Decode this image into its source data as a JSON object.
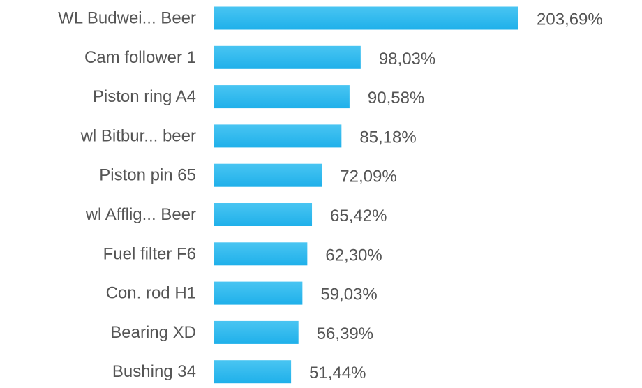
{
  "chart_data": {
    "type": "bar",
    "orientation": "horizontal",
    "categories": [
      "WL Budwei... Beer",
      "Cam follower 1",
      "Piston ring A4",
      "wl Bitbur... beer",
      "Piston pin 65",
      "wl Afflig... Beer",
      "Fuel filter F6",
      "Con. rod H1",
      "Bearing XD",
      "Bushing 34"
    ],
    "values": [
      203.69,
      98.03,
      90.58,
      85.18,
      72.09,
      65.42,
      62.3,
      59.03,
      56.39,
      51.44
    ],
    "value_labels": [
      "203,69%",
      "98,03%",
      "90,58%",
      "85,18%",
      "72,09%",
      "65,42%",
      "62,30%",
      "59,03%",
      "56,39%",
      "51,44%"
    ],
    "title": "",
    "xlabel": "",
    "ylabel": "",
    "xlim": [
      0,
      203.69
    ],
    "grid": false,
    "legend": "none",
    "colors": {
      "bar_top": "#49c5f2",
      "bar_bottom": "#1fb0ea",
      "label_text": "#555555"
    }
  }
}
